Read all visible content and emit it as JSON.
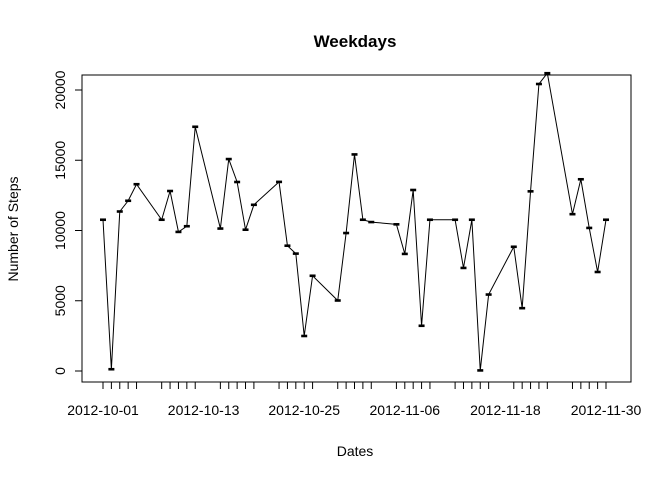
{
  "chart_data": {
    "type": "line",
    "title": "Weekdays",
    "xlabel": "Dates",
    "ylabel": "Number of Steps",
    "xlim": [
      "2012-10-01",
      "2012-11-30"
    ],
    "ylim": [
      0,
      21500
    ],
    "x_tick_labels": [
      "2012-10-01",
      "2012-10-13",
      "2012-10-25",
      "2012-11-06",
      "2012-11-18",
      "2012-11-30"
    ],
    "y_ticks": [
      0,
      5000,
      10000,
      15000,
      20000
    ],
    "y_tick_labels": [
      "0",
      "5000",
      "10000",
      "15000",
      "20000"
    ],
    "grid": false,
    "series": [
      {
        "x": [
          "2012-10-01",
          "2012-10-02",
          "2012-10-03",
          "2012-10-04",
          "2012-10-05",
          "2012-10-08",
          "2012-10-09",
          "2012-10-10",
          "2012-10-11",
          "2012-10-12",
          "2012-10-15",
          "2012-10-16",
          "2012-10-17",
          "2012-10-18",
          "2012-10-19",
          "2012-10-22",
          "2012-10-23",
          "2012-10-24",
          "2012-10-25",
          "2012-10-26",
          "2012-10-29",
          "2012-10-30",
          "2012-10-31",
          "2012-11-01",
          "2012-11-02",
          "2012-11-05",
          "2012-11-06",
          "2012-11-07",
          "2012-11-08",
          "2012-11-09",
          "2012-11-12",
          "2012-11-13",
          "2012-11-14",
          "2012-11-15",
          "2012-11-16",
          "2012-11-19",
          "2012-11-20",
          "2012-11-21",
          "2012-11-22",
          "2012-11-23",
          "2012-11-26",
          "2012-11-27",
          "2012-11-28",
          "2012-11-29",
          "2012-11-30"
        ],
        "values": [
          10766,
          126,
          11352,
          12116,
          13294,
          10766,
          12811,
          9900,
          10304,
          17382,
          10139,
          15084,
          13452,
          10056,
          11829,
          13460,
          8918,
          8355,
          2492,
          6778,
          5018,
          9819,
          15414,
          10766,
          10600,
          10439,
          8334,
          12883,
          3219,
          10766,
          10765,
          7336,
          10766,
          41,
          5441,
          8841,
          4472,
          12787,
          20427,
          21194,
          11162,
          13646,
          10183,
          7047,
          10766
        ]
      }
    ]
  }
}
